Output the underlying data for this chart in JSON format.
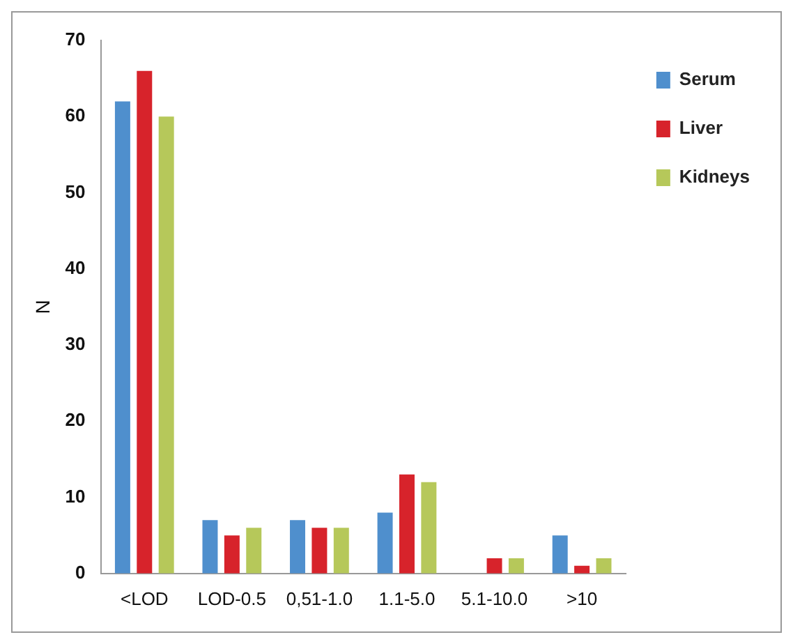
{
  "chart_data": {
    "type": "bar",
    "ylabel": "N",
    "categories": [
      "<LOD",
      "LOD-0.5",
      "0,51-1.0",
      "1.1-5.0",
      "5.1-10.0",
      ">10"
    ],
    "series": [
      {
        "name": "Serum",
        "color": "#4f8fcd",
        "values": [
          62,
          7,
          7,
          8,
          0,
          5
        ]
      },
      {
        "name": "Liver",
        "color": "#d7232b",
        "values": [
          66,
          5,
          6,
          13,
          2,
          1
        ]
      },
      {
        "name": "Kidneys",
        "color": "#b6c85a",
        "values": [
          60,
          6,
          6,
          12,
          2,
          2
        ]
      }
    ],
    "ylim": [
      0,
      70
    ],
    "yticks": [
      0,
      10,
      20,
      30,
      40,
      50,
      60,
      70
    ],
    "grid": false,
    "legend": "top right"
  }
}
